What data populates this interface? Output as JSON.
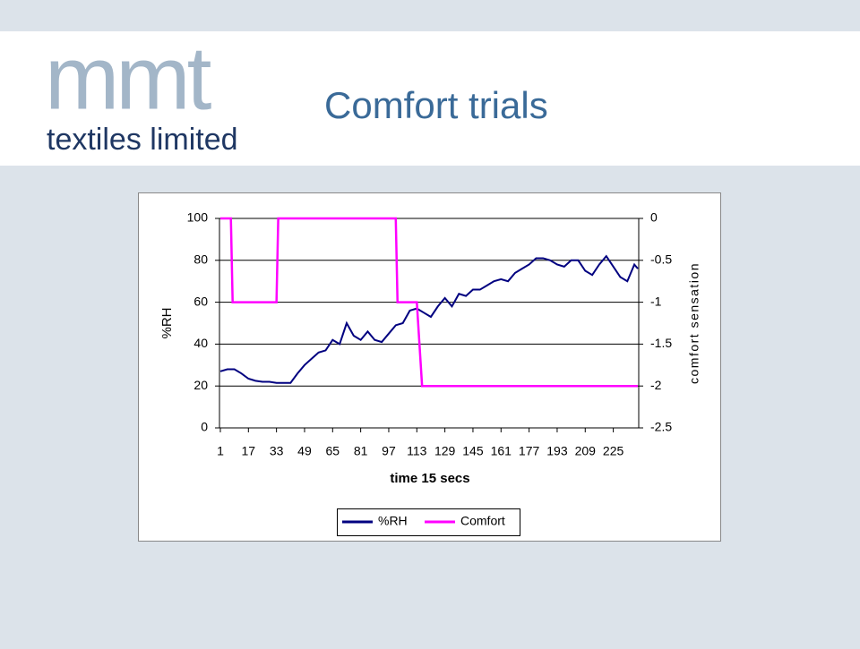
{
  "logo": {
    "mark": "mmt",
    "tagline": "textiles limited"
  },
  "slide_title": "Comfort trials",
  "chart_data": {
    "type": "line",
    "x_label": "time 15 secs",
    "y_label": "%RH",
    "y2_label": "comfort sensation",
    "xlim": [
      0.5,
      239.5
    ],
    "xticks": [
      1,
      17,
      33,
      49,
      65,
      81,
      97,
      113,
      129,
      145,
      161,
      177,
      193,
      209,
      225
    ],
    "ylim": [
      0,
      100
    ],
    "yticks": [
      0,
      20,
      40,
      60,
      80,
      100
    ],
    "y2lim": [
      -2.5,
      0
    ],
    "y2ticks": [
      -2.5,
      -2,
      -1.5,
      -1,
      -0.5,
      0
    ],
    "grid": true,
    "legend": "bottom",
    "series": [
      {
        "name": "%RH",
        "color": "#000080",
        "x": [
          1,
          5,
          9,
          13,
          17,
          21,
          25,
          29,
          33,
          37,
          41,
          45,
          49,
          53,
          57,
          61,
          65,
          69,
          73,
          77,
          81,
          85,
          89,
          93,
          97,
          101,
          105,
          109,
          113,
          117,
          121,
          125,
          129,
          133,
          137,
          141,
          145,
          149,
          153,
          157,
          161,
          165,
          169,
          173,
          177,
          181,
          185,
          189,
          193,
          197,
          201,
          205,
          209,
          213,
          217,
          221,
          225,
          229,
          233,
          237,
          239
        ],
        "values": [
          27,
          28,
          28,
          26,
          23.5,
          22.5,
          22,
          22,
          21.5,
          21.5,
          21.5,
          26,
          30,
          33,
          36,
          37,
          42,
          40,
          50,
          44,
          42,
          46,
          42,
          41,
          45,
          49,
          50,
          56,
          57,
          55,
          53,
          58,
          62,
          58,
          64,
          63,
          66,
          66,
          68,
          70,
          71,
          70,
          74,
          76,
          78,
          81,
          81,
          80,
          78,
          77,
          80,
          80,
          75,
          73,
          78,
          82,
          77,
          72,
          70,
          78,
          76
        ]
      },
      {
        "name": "Comfort",
        "color": "#ff00ff",
        "axis": "y2",
        "x": [
          1,
          7,
          8,
          33,
          34,
          101,
          102,
          113,
          116,
          239
        ],
        "values": [
          0,
          0,
          -1,
          -1,
          0,
          0,
          -1,
          -1,
          -2,
          -2
        ]
      }
    ]
  }
}
